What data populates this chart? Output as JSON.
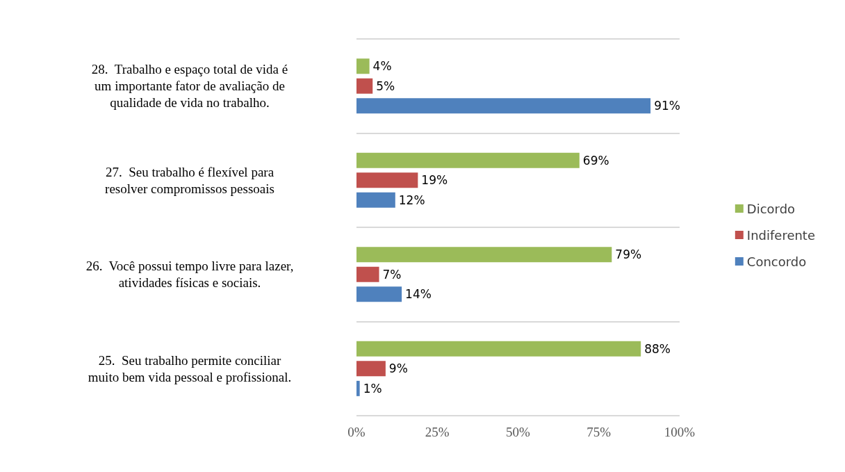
{
  "chart_data": {
    "type": "bar",
    "orientation": "horizontal",
    "categories": [
      "28.  Trabalho e espaço total de vida é um importante fator de avaliação de qualidade de vida no trabalho.",
      "27.  Seu trabalho é flexível para resolver compromissos pessoais",
      "26.  Você possui tempo livre para lazer, atividades físicas e sociais.",
      "25.  Seu trabalho permite conciliar muito bem vida pessoal e profissional."
    ],
    "series": [
      {
        "name": "Dicordo",
        "color": "#9bbb59",
        "values": [
          4,
          69,
          79,
          88
        ],
        "value_labels": [
          "4%",
          "69%",
          "79%",
          "88%"
        ]
      },
      {
        "name": "Indiferente",
        "color": "#c0504d",
        "values": [
          5,
          19,
          7,
          9
        ],
        "value_labels": [
          "5%",
          "19%",
          "7%",
          "9%"
        ]
      },
      {
        "name": "Concordo",
        "color": "#4f81bd",
        "values": [
          91,
          12,
          14,
          1
        ],
        "value_labels": [
          "91%",
          "12%",
          "14%",
          "1%"
        ]
      }
    ],
    "xlim": [
      0,
      100
    ],
    "xticks": [
      {
        "value": 0,
        "label": "0%"
      },
      {
        "value": 25,
        "label": "25%"
      },
      {
        "value": 50,
        "label": "50%"
      },
      {
        "value": 75,
        "label": "75%"
      },
      {
        "value": 100,
        "label": "100%"
      }
    ],
    "grid": "y",
    "legend": "right"
  }
}
